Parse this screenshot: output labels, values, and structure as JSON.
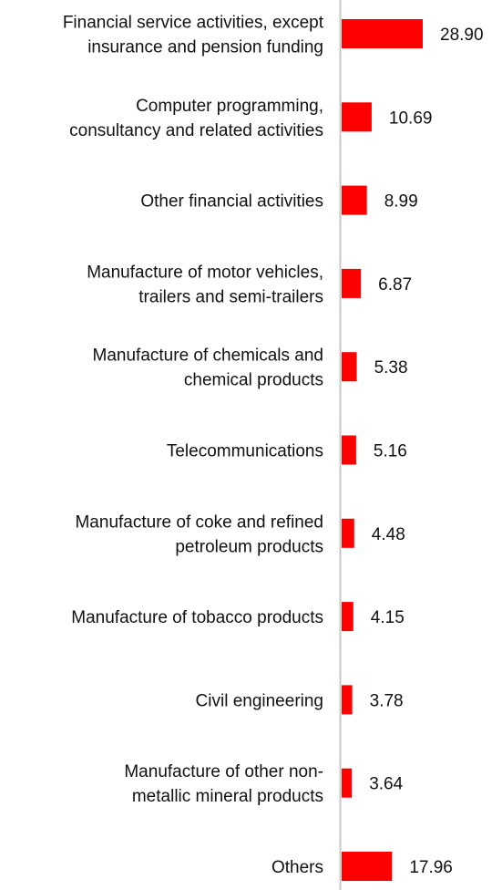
{
  "chart_data": {
    "type": "bar",
    "orientation": "horizontal",
    "title": "",
    "xlabel": "",
    "ylabel": "",
    "categories": [
      [
        "Financial service activities, except",
        "insurance and pension funding"
      ],
      [
        "Computer programming,",
        "consultancy and related activities"
      ],
      [
        "Other financial activities"
      ],
      [
        "Manufacture of motor vehicles,",
        "trailers and semi-trailers"
      ],
      [
        "Manufacture of chemicals and",
        "chemical products"
      ],
      [
        "Telecommunications"
      ],
      [
        "Manufacture of coke and refined",
        "petroleum products"
      ],
      [
        "Manufacture of tobacco products"
      ],
      [
        "Civil engineering"
      ],
      [
        "Manufacture of other non-",
        "metallic mineral products"
      ],
      [
        "Others"
      ]
    ],
    "values": [
      28.9,
      10.69,
      8.99,
      6.87,
      5.38,
      5.16,
      4.48,
      4.15,
      3.78,
      3.64,
      17.96
    ],
    "value_labels": [
      "28.90",
      "10.69",
      "8.99",
      "6.87",
      "5.38",
      "5.16",
      "4.48",
      "4.15",
      "3.78",
      "3.64",
      "17.96"
    ],
    "xlim": [
      0,
      100
    ],
    "grid": false,
    "legend": "none",
    "colors": {
      "bar": "#ff0000",
      "axis": "#c8c8c8",
      "text": "#111111"
    }
  }
}
